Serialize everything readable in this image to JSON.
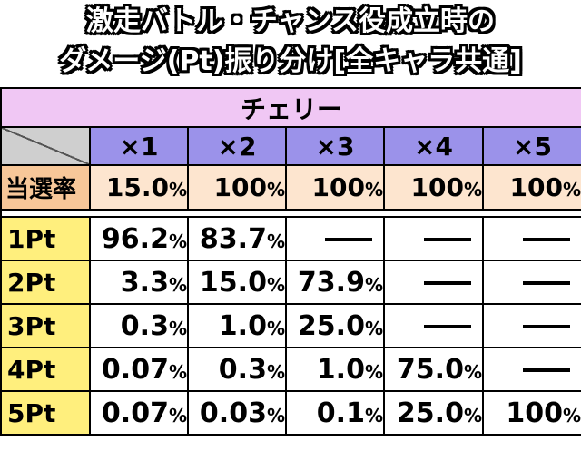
{
  "title": {
    "line1": "激走バトル・チャンス役成立時の",
    "line2": "ダメージ(Pt)振り分け[全キャラ共通]"
  },
  "table": {
    "section": "チェリー",
    "multipliers": [
      "×1",
      "×2",
      "×3",
      "×4",
      "×5"
    ],
    "rate_label": "当選率",
    "rates": [
      {
        "num": "15.0",
        "unit": "%"
      },
      {
        "num": "100",
        "unit": "%"
      },
      {
        "num": "100",
        "unit": "%"
      },
      {
        "num": "100",
        "unit": "%"
      },
      {
        "num": "100",
        "unit": "%"
      }
    ],
    "rows": [
      {
        "label": "1Pt",
        "cells": [
          {
            "num": "96.2",
            "unit": "%"
          },
          {
            "num": "83.7",
            "unit": "%"
          },
          {
            "num": "",
            "unit": ""
          },
          {
            "num": "",
            "unit": ""
          },
          {
            "num": "",
            "unit": ""
          }
        ]
      },
      {
        "label": "2Pt",
        "cells": [
          {
            "num": "3.3",
            "unit": "%"
          },
          {
            "num": "15.0",
            "unit": "%"
          },
          {
            "num": "73.9",
            "unit": "%"
          },
          {
            "num": "",
            "unit": ""
          },
          {
            "num": "",
            "unit": ""
          }
        ]
      },
      {
        "label": "3Pt",
        "cells": [
          {
            "num": "0.3",
            "unit": "%"
          },
          {
            "num": "1.0",
            "unit": "%"
          },
          {
            "num": "25.0",
            "unit": "%"
          },
          {
            "num": "",
            "unit": ""
          },
          {
            "num": "",
            "unit": ""
          }
        ]
      },
      {
        "label": "4Pt",
        "cells": [
          {
            "num": "0.07",
            "unit": "%"
          },
          {
            "num": "0.3",
            "unit": "%"
          },
          {
            "num": "1.0",
            "unit": "%"
          },
          {
            "num": "75.0",
            "unit": "%"
          },
          {
            "num": "",
            "unit": ""
          }
        ]
      },
      {
        "label": "5Pt",
        "cells": [
          {
            "num": "0.07",
            "unit": "%"
          },
          {
            "num": "0.03",
            "unit": "%"
          },
          {
            "num": "0.1",
            "unit": "%"
          },
          {
            "num": "25.0",
            "unit": "%"
          },
          {
            "num": "100",
            "unit": "%"
          }
        ]
      }
    ]
  },
  "colors": {
    "section_bg": "#f0c7f4",
    "multiplier_bg": "#9b92ea",
    "rate_label_bg": "#f7c799",
    "rate_bg": "#fde5cf",
    "row_label_bg": "#ffef7d"
  }
}
